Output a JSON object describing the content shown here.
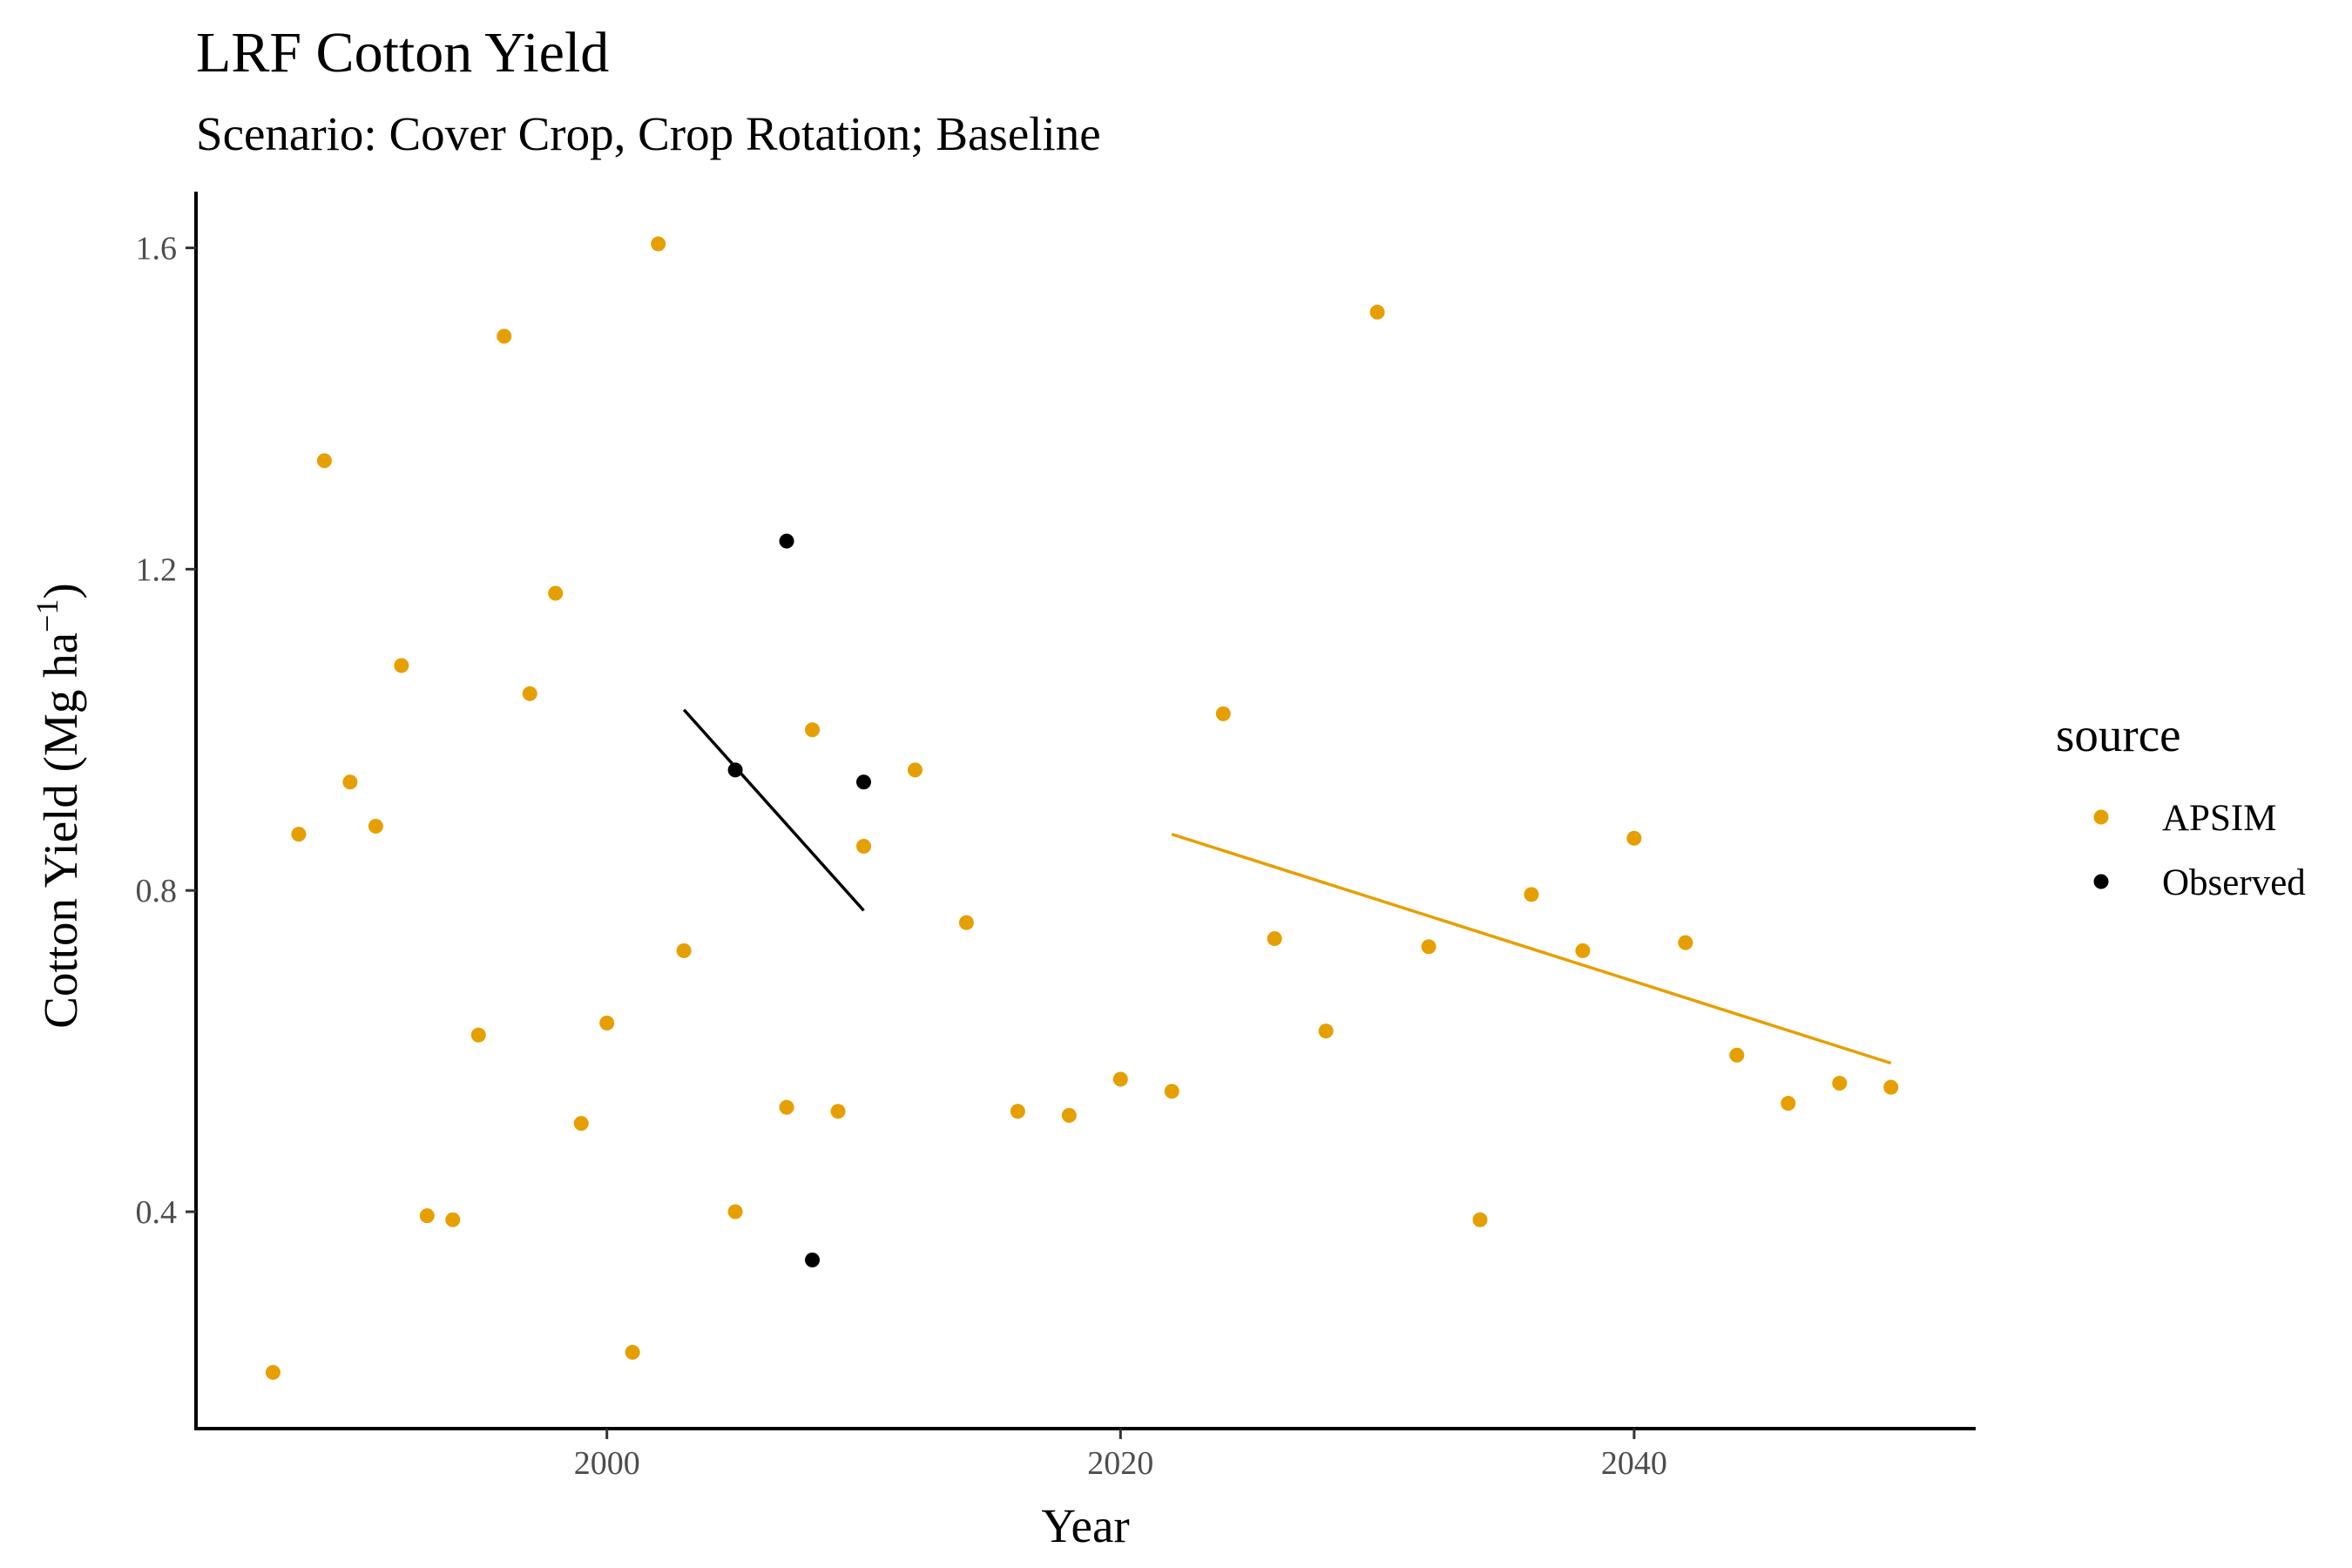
{
  "chart_data": {
    "type": "scatter",
    "title": "LRF Cotton Yield",
    "subtitle": "Scenario: Cover Crop, Crop Rotation; Baseline",
    "xlabel": "Year",
    "ylabel_main": "Cotton Yield (Mg ha",
    "ylabel_sup": "−1",
    "ylabel_close": ")",
    "xlim": [
      1984,
      2053.3
    ],
    "ylim": [
      0.13,
      1.67
    ],
    "x_ticks": [
      2000,
      2020,
      2040
    ],
    "x_tick_labels": [
      "2000",
      "2020",
      "2040"
    ],
    "y_ticks": [
      0.4,
      0.8,
      1.2,
      1.6
    ],
    "y_tick_labels": [
      "0.4",
      "0.8",
      "1.2",
      "1.6"
    ],
    "grid": false,
    "legend": {
      "title": "source",
      "placement": "right",
      "entries": [
        "APSIM",
        "Observed"
      ]
    },
    "colors": {
      "APSIM": "#E69F00",
      "Observed": "#000000"
    },
    "series": [
      {
        "name": "APSIM",
        "x": [
          1987,
          1988,
          1989,
          1990,
          1991,
          1992,
          1993,
          1994,
          1995,
          1996,
          1997,
          1998,
          1999,
          2000,
          2001,
          2002,
          2003,
          2005,
          2007,
          2008,
          2009,
          2010,
          2012,
          2014,
          2016,
          2018,
          2020,
          2022,
          2024,
          2026,
          2028,
          2030,
          2032,
          2034,
          2036,
          2038,
          2040,
          2042,
          2044,
          2046,
          2048,
          2050
        ],
        "y": [
          0.2,
          0.87,
          1.335,
          0.935,
          0.88,
          1.08,
          0.395,
          0.39,
          0.62,
          1.49,
          1.045,
          1.17,
          0.51,
          0.635,
          0.225,
          1.605,
          0.725,
          0.4,
          0.53,
          1.0,
          0.525,
          0.855,
          0.95,
          0.76,
          0.525,
          0.52,
          0.565,
          0.55,
          1.02,
          0.74,
          0.625,
          1.52,
          0.73,
          0.39,
          0.795,
          0.725,
          0.865,
          0.735,
          0.595,
          0.535,
          0.56,
          0.555
        ]
      },
      {
        "name": "Observed",
        "x": [
          2005,
          2007,
          2008,
          2010
        ],
        "y": [
          0.95,
          1.235,
          0.34,
          0.935
        ]
      }
    ],
    "trend_lines": [
      {
        "name": "Observed",
        "x": [
          2003,
          2010
        ],
        "y": [
          1.025,
          0.775
        ]
      },
      {
        "name": "APSIM",
        "x": [
          2022,
          2050
        ],
        "y": [
          0.87,
          0.585
        ]
      }
    ]
  }
}
